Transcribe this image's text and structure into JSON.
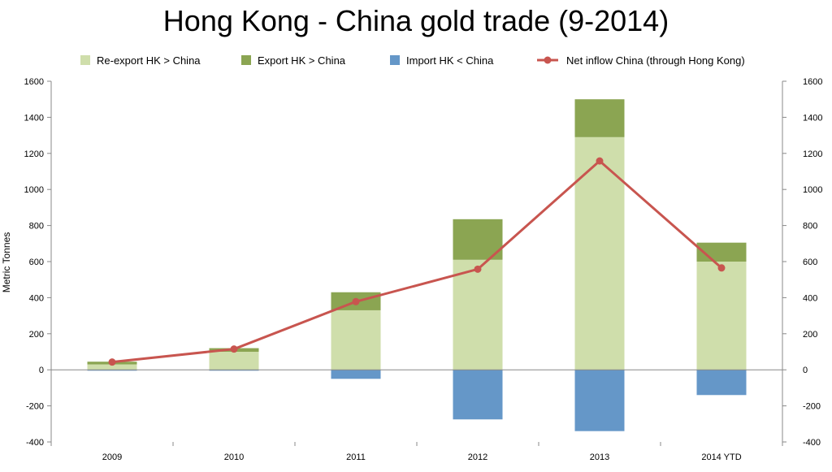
{
  "chart_data": {
    "type": "bar",
    "title": "Hong Kong - China gold trade (9-2014)",
    "ylabel": "Metric Tonnes",
    "xlabel": "",
    "categories": [
      "2009",
      "2010",
      "2011",
      "2012",
      "2013",
      "2014 YTD"
    ],
    "ylim": [
      -400,
      1600
    ],
    "yticks": [
      -400,
      -200,
      0,
      200,
      400,
      600,
      800,
      1000,
      1200,
      1400,
      1600
    ],
    "secondary_yticks": [
      -400,
      -200,
      0,
      200,
      400,
      600,
      800,
      1000,
      1200,
      1400,
      1600
    ],
    "stacked": true,
    "grid": false,
    "legend_position": "top",
    "series": [
      {
        "name": "Re-export HK > China",
        "kind": "bar",
        "color": "#cfdeab",
        "values": [
          30,
          100,
          330,
          610,
          1290,
          600
        ]
      },
      {
        "name": "Export HK > China",
        "kind": "bar",
        "color": "#8ba552",
        "values": [
          15,
          20,
          100,
          225,
          210,
          105
        ]
      },
      {
        "name": "Import HK < China",
        "kind": "bar",
        "color": "#6597c8",
        "values": [
          -5,
          -5,
          -50,
          -275,
          -340,
          -140
        ]
      },
      {
        "name": "Net inflow China (through Hong Kong)",
        "kind": "line",
        "color": "#c8554f",
        "values": [
          43,
          115,
          378,
          558,
          1158,
          565
        ]
      }
    ]
  }
}
